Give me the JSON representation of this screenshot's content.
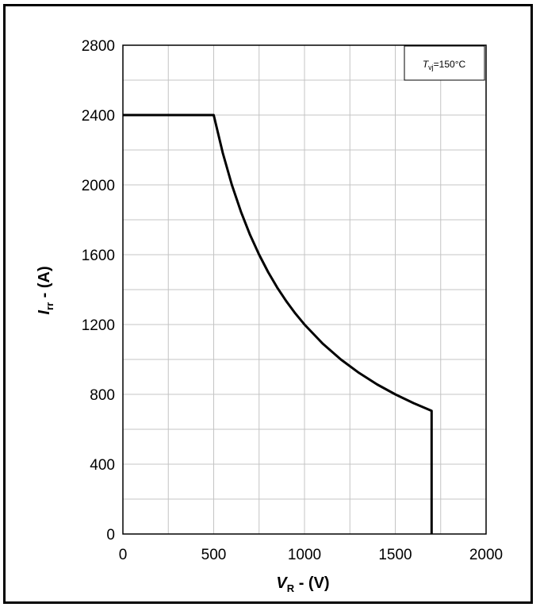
{
  "chart_data": {
    "type": "line",
    "title": "",
    "annotation": {
      "symbol": "T",
      "subscript": "vj",
      "value": "=150°C"
    },
    "xlabel": {
      "symbol": "V",
      "subscript": "R",
      "unit": " - (V)"
    },
    "ylabel": {
      "symbol": "I",
      "subscript": "rr",
      "unit": " - (A)"
    },
    "xlim": [
      0,
      2000
    ],
    "ylim": [
      0,
      2800
    ],
    "x_ticks": [
      0,
      500,
      1000,
      1500,
      2000
    ],
    "y_ticks": [
      0,
      400,
      800,
      1200,
      1600,
      2000,
      2400,
      2800
    ],
    "x_tick_labels": [
      "0",
      "500",
      "1000",
      "1500",
      "2000"
    ],
    "y_tick_labels": [
      "0",
      "400",
      "800",
      "1200",
      "1600",
      "2000",
      "2400",
      "2800"
    ],
    "grid": true,
    "x_minor_step": 250,
    "y_minor_step": 200,
    "series": [
      {
        "color": "#000000",
        "x": [
          0,
          500,
          550,
          600,
          650,
          700,
          750,
          800,
          850,
          900,
          950,
          1000,
          1100,
          1200,
          1300,
          1400,
          1500,
          1600,
          1700,
          1700
        ],
        "y": [
          2400,
          2400,
          2182,
          2000,
          1846,
          1714,
          1600,
          1500,
          1412,
          1333,
          1263,
          1200,
          1091,
          1000,
          923,
          857,
          800,
          750,
          706,
          0
        ]
      }
    ]
  }
}
